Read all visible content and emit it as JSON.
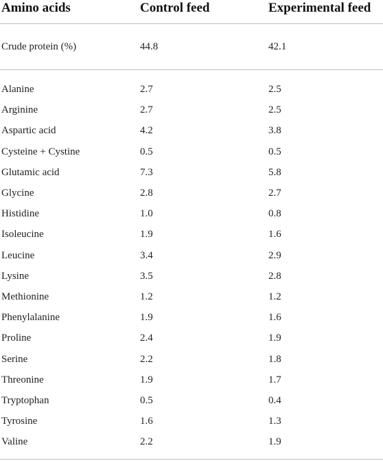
{
  "table": {
    "headers": [
      "Amino acids",
      "Control feed",
      "Experimental feed"
    ],
    "summary_row": {
      "label": "Crude protein (%)",
      "control": "44.8",
      "experimental": "42.1"
    },
    "rows": [
      {
        "label": "Alanine",
        "control": "2.7",
        "experimental": "2.5"
      },
      {
        "label": "Arginine",
        "control": "2.7",
        "experimental": "2.5"
      },
      {
        "label": "Aspartic acid",
        "control": "4.2",
        "experimental": "3.8"
      },
      {
        "label": "Cysteine + Cystine",
        "control": "0.5",
        "experimental": "0.5"
      },
      {
        "label": "Glutamic acid",
        "control": "7.3",
        "experimental": "5.8"
      },
      {
        "label": "Glycine",
        "control": "2.8",
        "experimental": "2.7"
      },
      {
        "label": "Histidine",
        "control": "1.0",
        "experimental": "0.8"
      },
      {
        "label": "Isoleucine",
        "control": "1.9",
        "experimental": "1.6"
      },
      {
        "label": "Leucine",
        "control": "3.4",
        "experimental": "2.9"
      },
      {
        "label": "Lysine",
        "control": "3.5",
        "experimental": "2.8"
      },
      {
        "label": "Methionine",
        "control": "1.2",
        "experimental": "1.2"
      },
      {
        "label": "Phenylalanine",
        "control": "1.9",
        "experimental": "1.6"
      },
      {
        "label": "Proline",
        "control": "2.4",
        "experimental": "1.9"
      },
      {
        "label": "Serine",
        "control": "2.2",
        "experimental": "1.8"
      },
      {
        "label": "Threonine",
        "control": "1.9",
        "experimental": "1.7"
      },
      {
        "label": "Tryptophan",
        "control": "0.5",
        "experimental": "0.4"
      },
      {
        "label": "Tyrosine",
        "control": "1.6",
        "experimental": "1.3"
      },
      {
        "label": "Valine",
        "control": "2.2",
        "experimental": "1.9"
      }
    ]
  }
}
